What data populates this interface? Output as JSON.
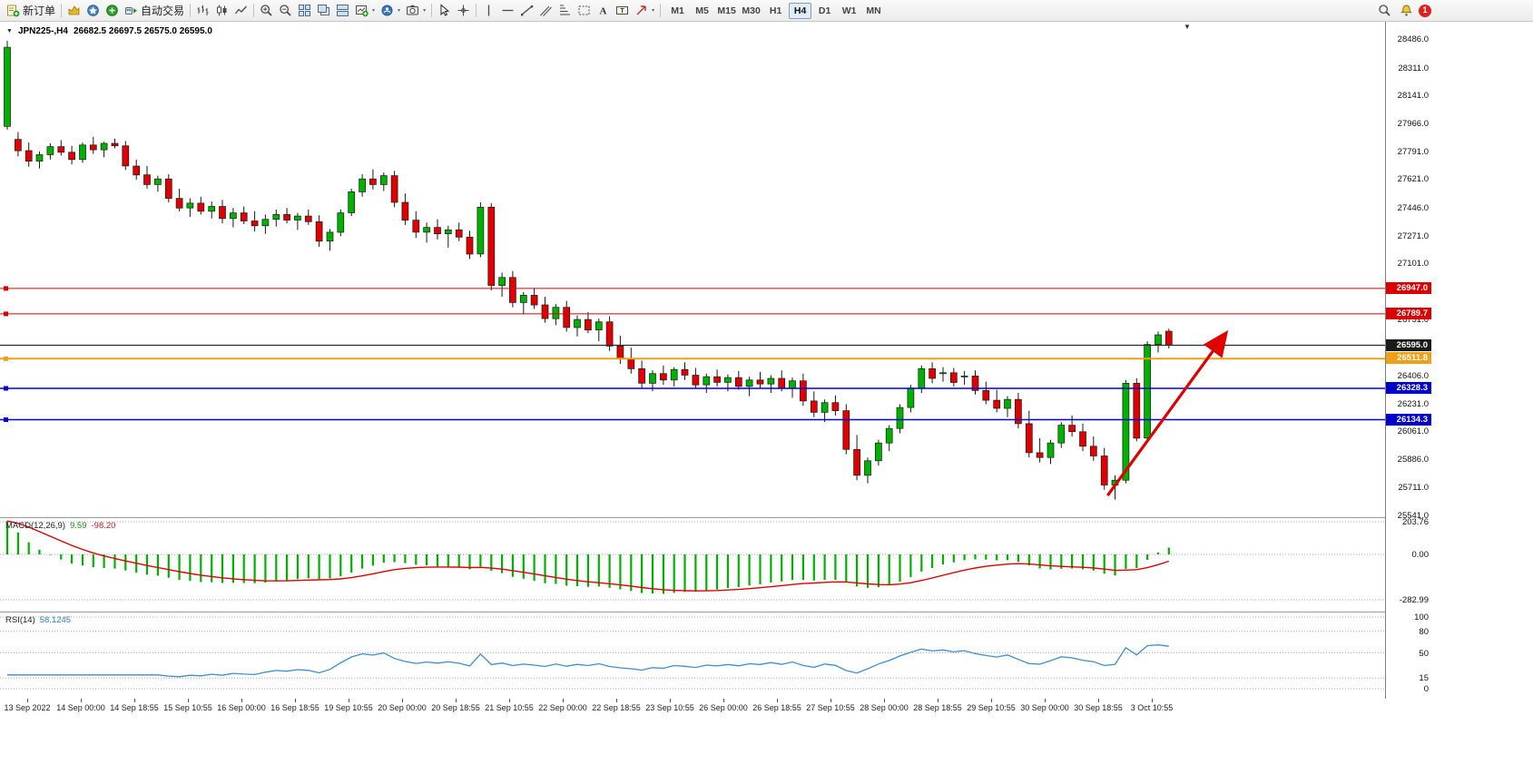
{
  "toolbar": {
    "new_order_label": "新订单",
    "autotrading_label": "自动交易",
    "timeframes": [
      "M1",
      "M5",
      "M15",
      "M30",
      "H1",
      "H4",
      "D1",
      "W1",
      "MN"
    ],
    "active_timeframe": "H4",
    "notification_count": "1"
  },
  "chart": {
    "symbol_period": "JPN225-,H4",
    "ohlc_text": "26682.5 26697.5 26575.0 26595.0",
    "price_lines": [
      {
        "price": 26947.0,
        "label": "26947.0",
        "color": "#dd0000",
        "tag_bg": "#dd0000",
        "width": 1,
        "handle": true
      },
      {
        "price": 26789.7,
        "label": "26789.7",
        "color": "#dd0000",
        "tag_bg": "#dd0000",
        "width": 1,
        "handle": true
      },
      {
        "price": 26595.0,
        "label": "26595.0",
        "color": "#2a2a2a",
        "tag_bg": "#1a1a1a",
        "width": 1.2,
        "handle": false
      },
      {
        "price": 26511.8,
        "label": "26511.8",
        "color": "#efa018",
        "tag_bg": "#efa018",
        "width": 2,
        "handle": true
      },
      {
        "price": 26328.3,
        "label": "26328.3",
        "color": "#0000dd",
        "tag_bg": "#0000cc",
        "width": 1.4,
        "handle": true
      },
      {
        "price": 26134.3,
        "label": "26134.3",
        "color": "#0000dd",
        "tag_bg": "#0000cc",
        "width": 1.4,
        "handle": true
      }
    ],
    "time_axis": [
      "13 Sep 2022",
      "14 Sep 00:00",
      "14 Sep 18:55",
      "15 Sep 10:55",
      "16 Sep 00:00",
      "16 Sep 18:55",
      "19 Sep 10:55",
      "20 Sep 00:00",
      "20 Sep 18:55",
      "21 Sep 10:55",
      "22 Sep 00:00",
      "22 Sep 18:55",
      "23 Sep 10:55",
      "26 Sep 00:00",
      "26 Sep 18:55",
      "27 Sep 10:55",
      "28 Sep 00:00",
      "28 Sep 18:55",
      "29 Sep 10:55",
      "30 Sep 00:00",
      "30 Sep 18:55",
      "3 Oct 10:55"
    ]
  },
  "chart_data": {
    "type": "candlestick",
    "symbol": "JPN225-",
    "period": "H4",
    "current_ohlc": {
      "open": 26682.5,
      "high": 26697.5,
      "low": 26575.0,
      "close": 26595.0
    },
    "y_axis_ticks": [
      28486.0,
      28311.0,
      28141.0,
      27966.0,
      27791.0,
      27621.0,
      27446.0,
      27271.0,
      27101.0,
      26926.0,
      26751.0,
      26576.0,
      26406.0,
      26231.0,
      26061.0,
      25886.0,
      25711.0,
      25541.0
    ],
    "candles": [
      [
        27950,
        28480,
        27930,
        28440
      ],
      [
        27870,
        27915,
        27765,
        27800
      ],
      [
        27800,
        27850,
        27700,
        27735
      ],
      [
        27735,
        27795,
        27690,
        27775
      ],
      [
        27775,
        27845,
        27745,
        27825
      ],
      [
        27825,
        27865,
        27770,
        27790
      ],
      [
        27790,
        27830,
        27715,
        27745
      ],
      [
        27745,
        27850,
        27725,
        27835
      ],
      [
        27835,
        27885,
        27780,
        27805
      ],
      [
        27805,
        27855,
        27760,
        27845
      ],
      [
        27845,
        27875,
        27815,
        27830
      ],
      [
        27830,
        27860,
        27680,
        27705
      ],
      [
        27705,
        27745,
        27620,
        27650
      ],
      [
        27650,
        27705,
        27565,
        27590
      ],
      [
        27590,
        27645,
        27545,
        27625
      ],
      [
        27625,
        27655,
        27480,
        27505
      ],
      [
        27505,
        27565,
        27425,
        27445
      ],
      [
        27445,
        27505,
        27390,
        27475
      ],
      [
        27475,
        27515,
        27405,
        27425
      ],
      [
        27425,
        27485,
        27380,
        27455
      ],
      [
        27455,
        27495,
        27350,
        27380
      ],
      [
        27380,
        27445,
        27325,
        27415
      ],
      [
        27415,
        27455,
        27345,
        27365
      ],
      [
        27365,
        27425,
        27300,
        27335
      ],
      [
        27335,
        27405,
        27285,
        27375
      ],
      [
        27375,
        27435,
        27330,
        27405
      ],
      [
        27405,
        27445,
        27350,
        27370
      ],
      [
        27370,
        27415,
        27310,
        27395
      ],
      [
        27395,
        27435,
        27340,
        27360
      ],
      [
        27360,
        27400,
        27205,
        27240
      ],
      [
        27240,
        27315,
        27180,
        27295
      ],
      [
        27295,
        27435,
        27270,
        27415
      ],
      [
        27415,
        27565,
        27395,
        27545
      ],
      [
        27545,
        27655,
        27515,
        27625
      ],
      [
        27625,
        27685,
        27560,
        27590
      ],
      [
        27590,
        27665,
        27550,
        27645
      ],
      [
        27645,
        27675,
        27450,
        27480
      ],
      [
        27480,
        27535,
        27340,
        27370
      ],
      [
        27370,
        27425,
        27260,
        27295
      ],
      [
        27295,
        27355,
        27230,
        27325
      ],
      [
        27325,
        27375,
        27250,
        27285
      ],
      [
        27285,
        27335,
        27200,
        27310
      ],
      [
        27310,
        27355,
        27240,
        27265
      ],
      [
        27265,
        27305,
        27130,
        27160
      ],
      [
        27160,
        27480,
        27140,
        27450
      ],
      [
        27450,
        27475,
        26935,
        26965
      ],
      [
        26965,
        27045,
        26895,
        27015
      ],
      [
        27015,
        27055,
        26830,
        26860
      ],
      [
        26860,
        26925,
        26785,
        26905
      ],
      [
        26905,
        26950,
        26820,
        26845
      ],
      [
        26845,
        26895,
        26735,
        26760
      ],
      [
        26760,
        26850,
        26720,
        26830
      ],
      [
        26830,
        26870,
        26680,
        26705
      ],
      [
        26705,
        26780,
        26650,
        26755
      ],
      [
        26755,
        26800,
        26670,
        26690
      ],
      [
        26690,
        26760,
        26620,
        26740
      ],
      [
        26740,
        26775,
        26560,
        26590
      ],
      [
        26590,
        26655,
        26480,
        26510
      ],
      [
        26510,
        26580,
        26420,
        26450
      ],
      [
        26450,
        26500,
        26330,
        26360
      ],
      [
        26360,
        26440,
        26310,
        26420
      ],
      [
        26420,
        26470,
        26350,
        26380
      ],
      [
        26380,
        26460,
        26340,
        26445
      ],
      [
        26445,
        26490,
        26380,
        26410
      ],
      [
        26410,
        26455,
        26330,
        26350
      ],
      [
        26350,
        26420,
        26300,
        26400
      ],
      [
        26400,
        26445,
        26340,
        26365
      ],
      [
        26365,
        26415,
        26310,
        26395
      ],
      [
        26395,
        26435,
        26320,
        26340
      ],
      [
        26340,
        26400,
        26280,
        26380
      ],
      [
        26380,
        26430,
        26330,
        26355
      ],
      [
        26355,
        26410,
        26300,
        26390
      ],
      [
        26390,
        26440,
        26310,
        26330
      ],
      [
        26330,
        26395,
        26270,
        26375
      ],
      [
        26375,
        26420,
        26220,
        26250
      ],
      [
        26250,
        26310,
        26150,
        26180
      ],
      [
        26180,
        26260,
        26120,
        26240
      ],
      [
        26240,
        26285,
        26160,
        26190
      ],
      [
        26190,
        26230,
        25920,
        25950
      ],
      [
        25950,
        26040,
        25760,
        25790
      ],
      [
        25790,
        25900,
        25740,
        25880
      ],
      [
        25880,
        26010,
        25850,
        25990
      ],
      [
        25990,
        26100,
        25940,
        26080
      ],
      [
        26080,
        26230,
        26050,
        26210
      ],
      [
        26210,
        26350,
        26180,
        26330
      ],
      [
        26330,
        26470,
        26300,
        26450
      ],
      [
        26450,
        26490,
        26360,
        26390
      ],
      [
        26420,
        26460,
        26370,
        26425
      ],
      [
        26425,
        26455,
        26340,
        26365
      ],
      [
        26400,
        26435,
        26350,
        26405
      ],
      [
        26405,
        26440,
        26290,
        26315
      ],
      [
        26315,
        26370,
        26230,
        26255
      ],
      [
        26255,
        26320,
        26180,
        26205
      ],
      [
        26205,
        26280,
        26150,
        26260
      ],
      [
        26260,
        26300,
        26080,
        26110
      ],
      [
        26110,
        26190,
        25900,
        25930
      ],
      [
        25930,
        26020,
        25870,
        25900
      ],
      [
        25900,
        26010,
        25860,
        25990
      ],
      [
        25990,
        26120,
        25960,
        26100
      ],
      [
        26100,
        26160,
        26030,
        26060
      ],
      [
        26060,
        26110,
        25940,
        25970
      ],
      [
        25970,
        26030,
        25880,
        25910
      ],
      [
        25910,
        25960,
        25700,
        25730
      ],
      [
        25730,
        25790,
        25640,
        25760
      ],
      [
        25760,
        26380,
        25740,
        26360
      ],
      [
        26360,
        26390,
        26000,
        26020
      ],
      [
        26020,
        26620,
        26000,
        26600
      ],
      [
        26600,
        26680,
        26550,
        26660
      ],
      [
        26682.5,
        26697.5,
        26575.0,
        26595.0
      ]
    ],
    "annotations": [
      {
        "type": "arrow",
        "color": "#e00000",
        "from": {
          "index": 102.3,
          "price": 25665
        },
        "to": {
          "index": 113.2,
          "price": 26660
        }
      }
    ]
  },
  "macd": {
    "name": "MACD(12,26,9)",
    "value_main": "9.59",
    "value_signal": "-98.20",
    "scale": [
      "203.76",
      "0.00",
      "-282.99"
    ],
    "histogram_color": "#00b200",
    "signal_color": "#e00000"
  },
  "rsi": {
    "name": "RSI(14)",
    "value": "58.1245",
    "scale": [
      "100",
      "80",
      "50",
      "15",
      "0"
    ],
    "line_color": "#3e8ed0"
  },
  "colors": {
    "candle_up": "#00b200",
    "candle_down": "#e00000",
    "candle_outline": "#1a1a1a",
    "background": "#ffffff",
    "axis_text": "#1a1a1a"
  }
}
